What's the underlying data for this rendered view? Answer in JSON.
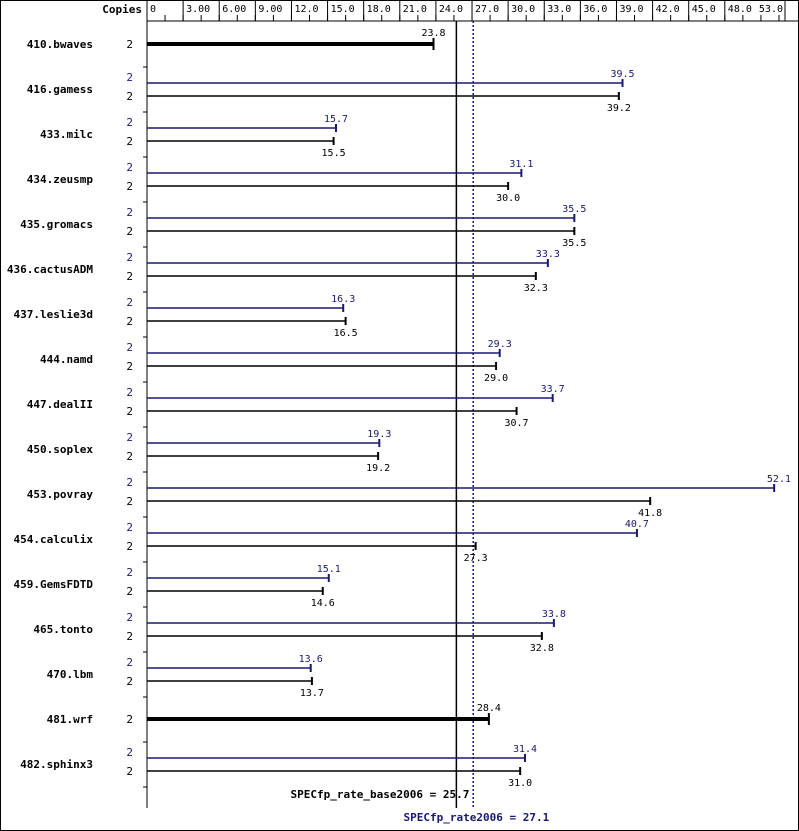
{
  "colors": {
    "base": "#000000",
    "peak": "#191970",
    "grid": "#000000"
  },
  "chart_data": {
    "type": "bar",
    "orientation": "horizontal",
    "copies_label": "Copies",
    "xlim": [
      0,
      53.0
    ],
    "ticks": [
      {
        "v": 0,
        "label": "0"
      },
      {
        "v": 3,
        "label": "3.00"
      },
      {
        "v": 6,
        "label": "6.00"
      },
      {
        "v": 9,
        "label": "9.00"
      },
      {
        "v": 12,
        "label": "12.0"
      },
      {
        "v": 15,
        "label": "15.0"
      },
      {
        "v": 18,
        "label": "18.0"
      },
      {
        "v": 21,
        "label": "21.0"
      },
      {
        "v": 24,
        "label": "24.0"
      },
      {
        "v": 27,
        "label": "27.0"
      },
      {
        "v": 30,
        "label": "30.0"
      },
      {
        "v": 33,
        "label": "33.0"
      },
      {
        "v": 36,
        "label": "36.0"
      },
      {
        "v": 39,
        "label": "39.0"
      },
      {
        "v": 42,
        "label": "42.0"
      },
      {
        "v": 45,
        "label": "45.0"
      },
      {
        "v": 48,
        "label": "48.0"
      },
      {
        "v": 53,
        "label": "53.0"
      }
    ],
    "benchmarks": [
      {
        "name": "410.bwaves",
        "peak": null,
        "base": 23.8,
        "peak_copies": "",
        "base_copies": "2",
        "base_label": "23.8",
        "peak_label": ""
      },
      {
        "name": "416.gamess",
        "peak": 39.5,
        "base": 39.2,
        "peak_copies": "2",
        "base_copies": "2",
        "peak_label": "39.5",
        "base_label": "39.2"
      },
      {
        "name": "433.milc",
        "peak": 15.7,
        "base": 15.5,
        "peak_copies": "2",
        "base_copies": "2",
        "peak_label": "15.7",
        "base_label": "15.5"
      },
      {
        "name": "434.zeusmp",
        "peak": 31.1,
        "base": 30.0,
        "peak_copies": "2",
        "base_copies": "2",
        "peak_label": "31.1",
        "base_label": "30.0"
      },
      {
        "name": "435.gromacs",
        "peak": 35.5,
        "base": 35.5,
        "peak_copies": "2",
        "base_copies": "2",
        "peak_label": "35.5",
        "base_label": "35.5"
      },
      {
        "name": "436.cactusADM",
        "peak": 33.3,
        "base": 32.3,
        "peak_copies": "2",
        "base_copies": "2",
        "peak_label": "33.3",
        "base_label": "32.3"
      },
      {
        "name": "437.leslie3d",
        "peak": 16.3,
        "base": 16.5,
        "peak_copies": "2",
        "base_copies": "2",
        "peak_label": "16.3",
        "base_label": "16.5"
      },
      {
        "name": "444.namd",
        "peak": 29.3,
        "base": 29.0,
        "peak_copies": "2",
        "base_copies": "2",
        "peak_label": "29.3",
        "base_label": "29.0"
      },
      {
        "name": "447.dealII",
        "peak": 33.7,
        "base": 30.7,
        "peak_copies": "2",
        "base_copies": "2",
        "peak_label": "33.7",
        "base_label": "30.7"
      },
      {
        "name": "450.soplex",
        "peak": 19.3,
        "base": 19.2,
        "peak_copies": "2",
        "base_copies": "2",
        "peak_label": "19.3",
        "base_label": "19.2"
      },
      {
        "name": "453.povray",
        "peak": 52.1,
        "base": 41.8,
        "peak_copies": "2",
        "base_copies": "2",
        "peak_label": "52.1",
        "base_label": "41.8"
      },
      {
        "name": "454.calculix",
        "peak": 40.7,
        "base": 27.3,
        "peak_copies": "2",
        "base_copies": "2",
        "peak_label": "40.7",
        "base_label": "27.3"
      },
      {
        "name": "459.GemsFDTD",
        "peak": 15.1,
        "base": 14.6,
        "peak_copies": "2",
        "base_copies": "2",
        "peak_label": "15.1",
        "base_label": "14.6"
      },
      {
        "name": "465.tonto",
        "peak": 33.8,
        "base": 32.8,
        "peak_copies": "2",
        "base_copies": "2",
        "peak_label": "33.8",
        "base_label": "32.8"
      },
      {
        "name": "470.lbm",
        "peak": 13.6,
        "base": 13.7,
        "peak_copies": "2",
        "base_copies": "2",
        "peak_label": "13.6",
        "base_label": "13.7"
      },
      {
        "name": "481.wrf",
        "peak": null,
        "base": 28.4,
        "peak_copies": "",
        "base_copies": "2",
        "base_label": "28.4",
        "peak_label": ""
      },
      {
        "name": "482.sphinx3",
        "peak": 31.4,
        "base": 31.0,
        "peak_copies": "2",
        "base_copies": "2",
        "peak_label": "31.4",
        "base_label": "31.0"
      }
    ],
    "reference_lines": [
      {
        "name": "base",
        "value": 25.7,
        "label": "SPECfp_rate_base2006 = 25.7",
        "style": "solid"
      },
      {
        "name": "peak",
        "value": 27.1,
        "label": "SPECfp_rate2006 = 27.1",
        "style": "dotted"
      }
    ]
  }
}
